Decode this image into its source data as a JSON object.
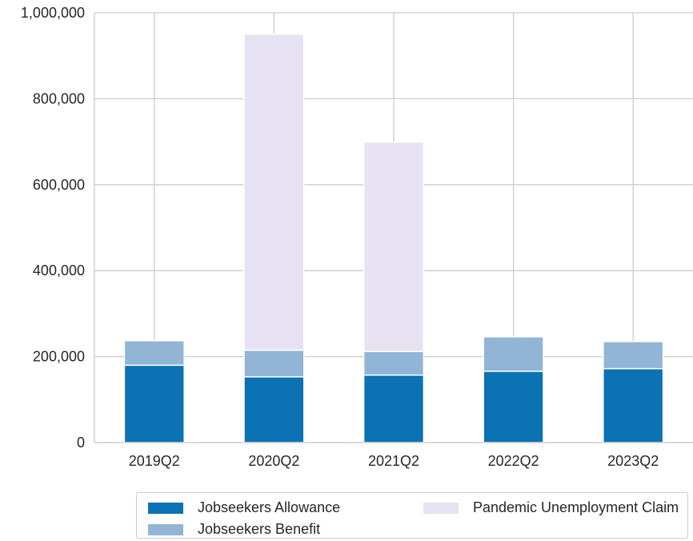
{
  "chart_data": {
    "type": "bar",
    "stacked": true,
    "categories": [
      "2019Q2",
      "2020Q2",
      "2021Q2",
      "2022Q2",
      "2023Q2"
    ],
    "series": [
      {
        "name": "Jobseekers Allowance",
        "color": "#0b72b3",
        "values": [
          180000,
          153000,
          157000,
          166000,
          172000
        ]
      },
      {
        "name": "Jobseekers Benefit",
        "color": "#92b5d6",
        "values": [
          57000,
          62000,
          55000,
          80000,
          63000
        ]
      },
      {
        "name": "Pandemic Unemployment Claim",
        "color": "#e6e2f1",
        "values": [
          0,
          735000,
          487000,
          0,
          0
        ]
      }
    ],
    "ylim": [
      0,
      1000000
    ],
    "yticks": [
      0,
      200000,
      400000,
      600000,
      800000,
      1000000
    ],
    "ytick_labels": [
      "0",
      "200,000",
      "400,000",
      "600,000",
      "800,000",
      "1,000,000"
    ],
    "grid": true,
    "legend_position": "bottom"
  }
}
